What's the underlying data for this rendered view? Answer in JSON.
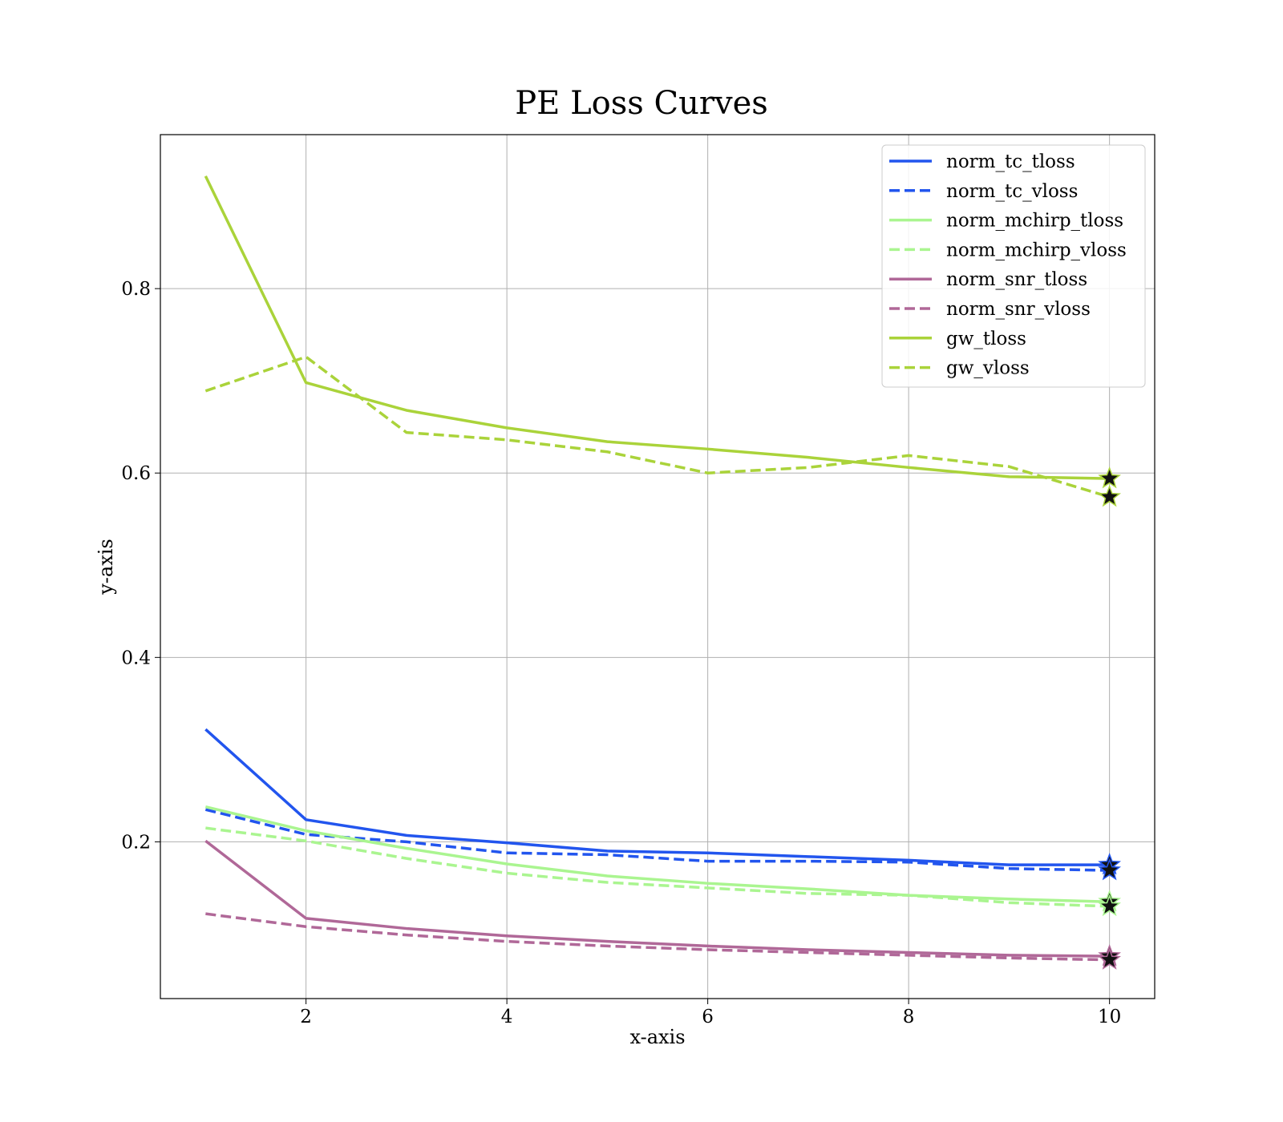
{
  "chart_data": {
    "type": "line",
    "title": "PE Loss Curves",
    "xlabel": "x-axis",
    "ylabel": "y-axis",
    "xlim": [
      0.55,
      10.45
    ],
    "ylim": [
      0.03,
      0.967
    ],
    "xticks": [
      2,
      4,
      6,
      8,
      10
    ],
    "xtick_labels": [
      "2",
      "4",
      "6",
      "8",
      "10"
    ],
    "yticks": [
      0.2,
      0.4,
      0.6,
      0.8
    ],
    "ytick_labels": [
      "0.2",
      "0.4",
      "0.6",
      "0.8"
    ],
    "grid": true,
    "legend_position": "top-right",
    "x": [
      1,
      2,
      3,
      4,
      5,
      6,
      7,
      8,
      9,
      10
    ],
    "series": [
      {
        "name": "norm_tc_tloss",
        "color": "#2255ee",
        "style": "solid",
        "values": [
          0.322,
          0.224,
          0.207,
          0.199,
          0.19,
          0.188,
          0.184,
          0.18,
          0.175,
          0.175
        ]
      },
      {
        "name": "norm_tc_vloss",
        "color": "#2255ee",
        "style": "dashed",
        "values": [
          0.235,
          0.208,
          0.2,
          0.188,
          0.186,
          0.179,
          0.179,
          0.178,
          0.171,
          0.169
        ]
      },
      {
        "name": "norm_mchirp_tloss",
        "color": "#aaf590",
        "style": "solid",
        "values": [
          0.238,
          0.212,
          0.193,
          0.176,
          0.163,
          0.155,
          0.149,
          0.142,
          0.138,
          0.135
        ]
      },
      {
        "name": "norm_mchirp_vloss",
        "color": "#aaf590",
        "style": "dashed",
        "values": [
          0.215,
          0.201,
          0.182,
          0.166,
          0.156,
          0.15,
          0.144,
          0.142,
          0.134,
          0.13
        ]
      },
      {
        "name": "norm_snr_tloss",
        "color": "#b06898",
        "style": "solid",
        "values": [
          0.201,
          0.117,
          0.106,
          0.098,
          0.092,
          0.087,
          0.083,
          0.08,
          0.077,
          0.076
        ]
      },
      {
        "name": "norm_snr_vloss",
        "color": "#b06898",
        "style": "dashed",
        "values": [
          0.122,
          0.108,
          0.099,
          0.092,
          0.087,
          0.083,
          0.08,
          0.077,
          0.074,
          0.072
        ]
      },
      {
        "name": "gw_tloss",
        "color": "#aad33a",
        "style": "solid",
        "values": [
          0.922,
          0.698,
          0.668,
          0.649,
          0.634,
          0.626,
          0.617,
          0.606,
          0.596,
          0.594
        ]
      },
      {
        "name": "gw_vloss",
        "color": "#aad33a",
        "style": "dashed",
        "values": [
          0.689,
          0.726,
          0.644,
          0.636,
          0.623,
          0.6,
          0.606,
          0.619,
          0.607,
          0.574
        ]
      }
    ],
    "markers": {
      "symbol": "star",
      "color": "#111111",
      "at_x": 10
    }
  }
}
